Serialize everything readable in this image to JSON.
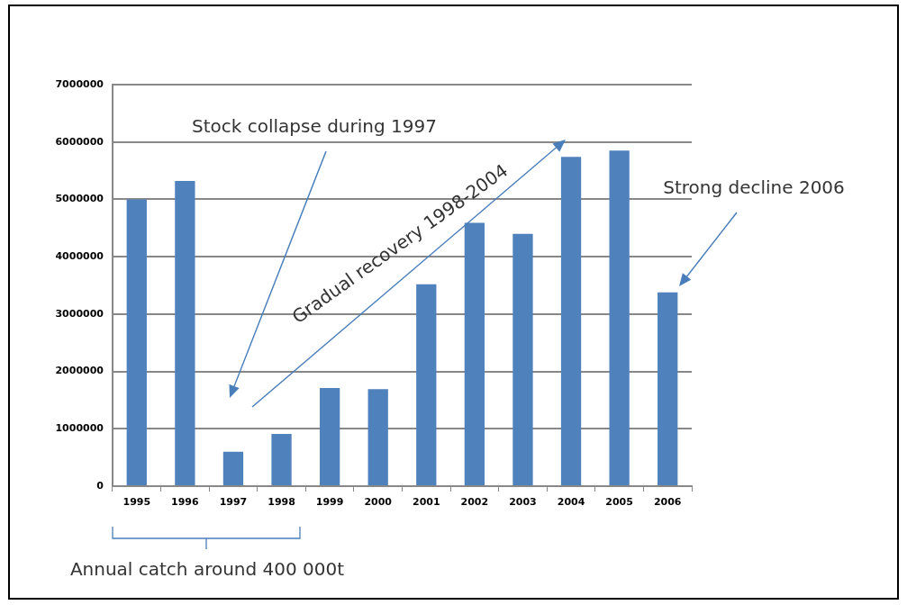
{
  "chart_data": {
    "type": "bar",
    "categories": [
      "1995",
      "1996",
      "1997",
      "1998",
      "1999",
      "2000",
      "2001",
      "2002",
      "2003",
      "2004",
      "2005",
      "2006"
    ],
    "values": [
      5000000,
      5320000,
      600000,
      910000,
      1710000,
      1690000,
      3520000,
      4590000,
      4400000,
      5740000,
      5850000,
      3380000
    ],
    "color": "#4f81bd",
    "ylim": [
      0,
      7000000
    ],
    "yticks": [
      0,
      1000000,
      2000000,
      3000000,
      4000000,
      5000000,
      6000000,
      7000000
    ],
    "grid": "y",
    "legend": false,
    "annotations": [
      "Stock collapse during 1997",
      "Gradual recovery 1998-2004",
      "Strong decline 2006",
      "Annual catch around 400 000t"
    ]
  }
}
